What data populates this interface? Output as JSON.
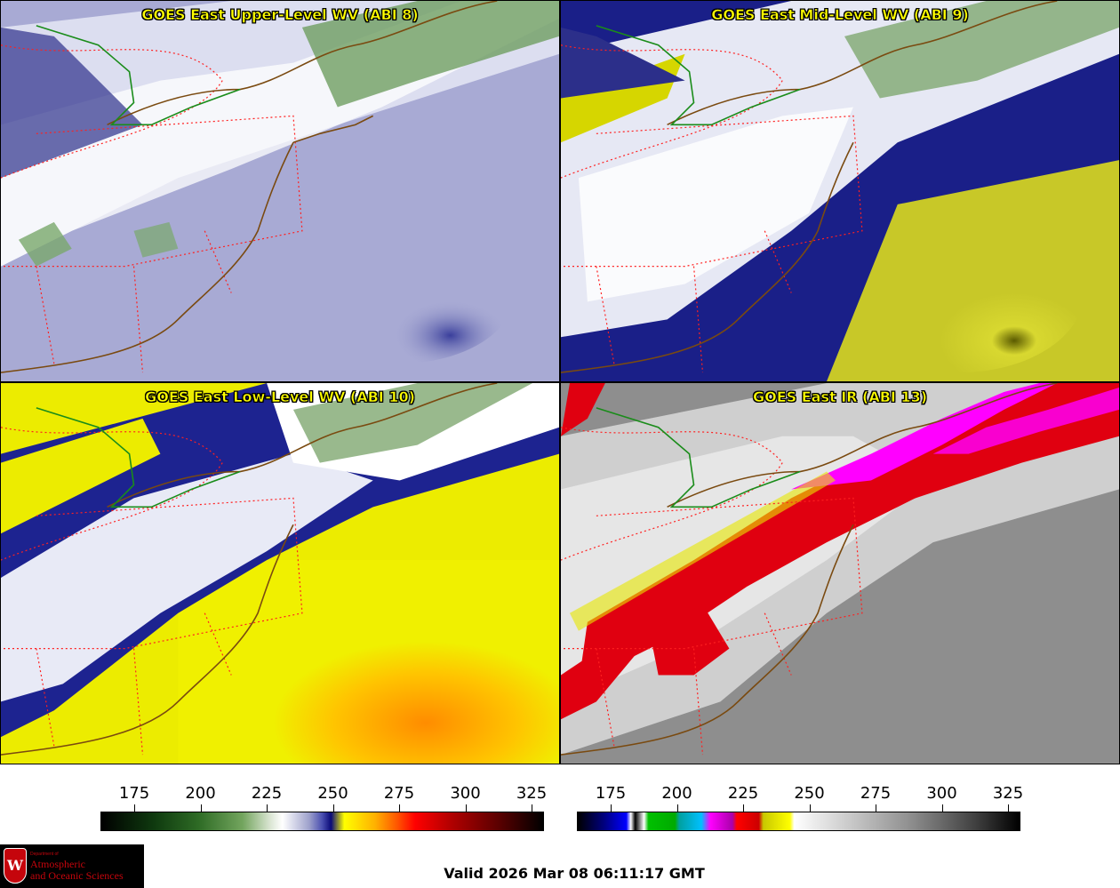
{
  "panels": [
    {
      "title": "GOES East Upper-Level WV (ABI 8)",
      "palette": "upper"
    },
    {
      "title": "GOES East Mid-Level WV (ABI 9)",
      "palette": "mid"
    },
    {
      "title": "GOES East Low-Level WV (ABI 10)",
      "palette": "low"
    },
    {
      "title": "GOES East IR (ABI 13)",
      "palette": "ir"
    }
  ],
  "colorbars": {
    "wv": {
      "ticks": [
        "175",
        "200",
        "225",
        "250",
        "275",
        "300",
        "325"
      ]
    },
    "ir": {
      "ticks": [
        "175",
        "200",
        "225",
        "250",
        "275",
        "300",
        "325"
      ]
    }
  },
  "logo": {
    "dept_line": "Department of",
    "line1": "Atmospheric",
    "line2": "and Oceanic Sciences",
    "seal_letter": "W"
  },
  "valid_time": "Valid 2026 Mar 08 06:11:17 GMT",
  "colors": {
    "state_border": "#ff2020",
    "coastline": "#7a4a10",
    "title_text": "#ffff00"
  }
}
